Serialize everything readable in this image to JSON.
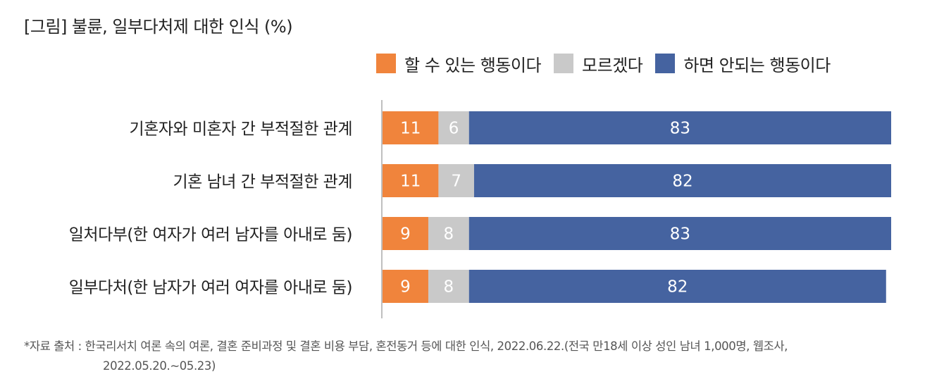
{
  "title": "[그림] 불륜, 일부다처제 대한 인식 (%)",
  "source": {
    "line1": "*자료 출처 : 한국리서치 여론 속의 여론, 결혼 준비과정 및 결혼 비용 부담, 혼전동거 등에 대한 인식, 2022.06.22.(전국 만18세 이상 성인 남녀 1,000명, 웹조사,",
    "line2": "2022.05.20.~05.23)"
  },
  "chart_data": {
    "type": "bar",
    "orientation": "horizontal",
    "stacked": true,
    "categories": [
      "기혼자와 미혼자 간 부적절한 관계",
      "기혼 남녀 간 부적절한 관계",
      "일처다부(한 여자가 여러 남자를 아내로 둠)",
      "일부다처(한 남자가 여러 여자를 아내로 둠)"
    ],
    "series": [
      {
        "name": "할 수 있는 행동이다",
        "color": "#F0843C",
        "values": [
          11,
          11,
          9,
          9
        ]
      },
      {
        "name": "모르겠다",
        "color": "#C9C9C9",
        "values": [
          6,
          7,
          8,
          8
        ]
      },
      {
        "name": "하면 안되는 행동이다",
        "color": "#4563A0",
        "values": [
          83,
          82,
          83,
          82
        ]
      }
    ],
    "xlim": [
      0,
      100
    ],
    "legend_position": "top-right",
    "grid": false
  }
}
